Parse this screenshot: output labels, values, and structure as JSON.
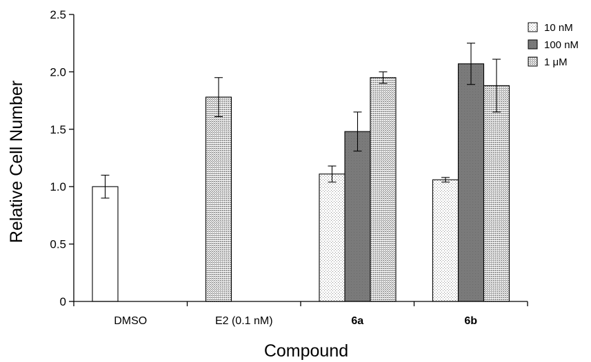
{
  "chart_data": {
    "type": "bar",
    "xlabel": "Compound",
    "ylabel": "Relative Cell Number",
    "ylim": [
      0,
      2.5
    ],
    "yticks": [
      "0",
      "0.5",
      "1.0",
      "1.5",
      "2.0",
      "2.5"
    ],
    "categories": [
      {
        "label": "DMSO",
        "bold": false
      },
      {
        "label": "E2 (0.1 nM)",
        "bold": false
      },
      {
        "label": "6a",
        "bold": true
      },
      {
        "label": "6b",
        "bold": true
      }
    ],
    "legend_position": "top-right",
    "series": [
      {
        "name": "10 nM",
        "fill": "#ffffff",
        "pattern": "sparse-dots",
        "values": [
          null,
          null,
          1.11,
          1.06
        ],
        "errors": [
          null,
          null,
          0.07,
          0.02
        ]
      },
      {
        "name": "100 nM",
        "fill": "#777777",
        "pattern": "none",
        "values": [
          null,
          null,
          1.48,
          2.07
        ],
        "errors": [
          null,
          null,
          0.17,
          0.18
        ]
      },
      {
        "name": "1 μM",
        "fill": "#d6d6d6",
        "pattern": "dense-dots",
        "values": [
          null,
          null,
          1.95,
          1.88
        ],
        "errors": [
          null,
          null,
          0.05,
          0.23
        ]
      }
    ],
    "extra_bars": [
      {
        "category": "DMSO",
        "value": 1.0,
        "error": 0.1,
        "style": "white"
      },
      {
        "category": "E2 (0.1 nM)",
        "value": 1.78,
        "error": 0.17,
        "style": "dense-dots"
      }
    ]
  }
}
